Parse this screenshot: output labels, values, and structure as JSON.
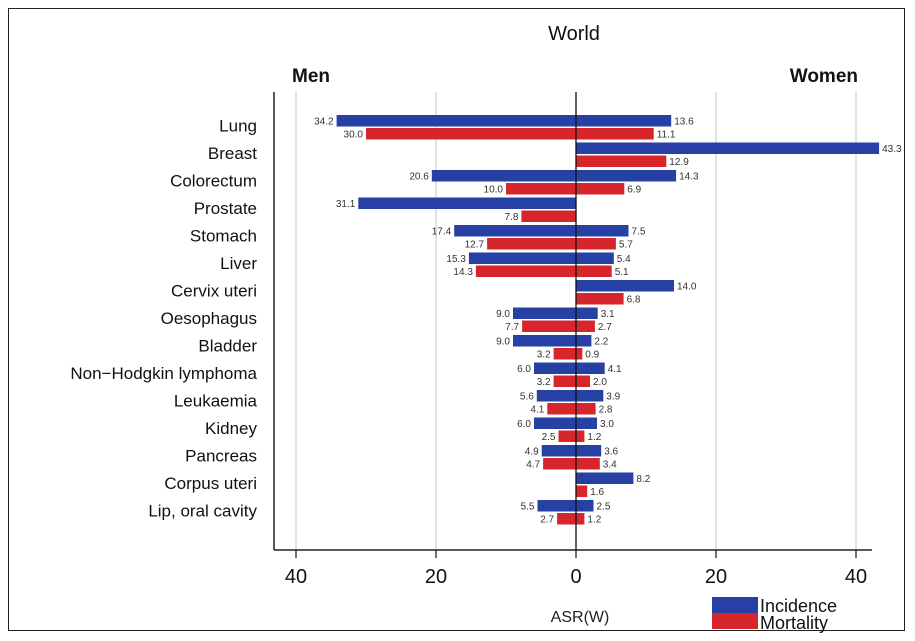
{
  "chart_data": {
    "type": "bar",
    "title": "World",
    "left_heading": "Men",
    "right_heading": "Women",
    "xlabel": "ASR(W)",
    "x_ticks": [
      "40",
      "20",
      "0",
      "20",
      "40"
    ],
    "xlim": [
      -40,
      40
    ],
    "grid": true,
    "legend_position": "bottom-right",
    "colors": {
      "incidence": "#2641a3",
      "mortality": "#d6252b"
    },
    "categories": [
      "Lung",
      "Breast",
      "Colorectum",
      "Prostate",
      "Stomach",
      "Liver",
      "Cervix uteri",
      "Oesophagus",
      "Bladder",
      "Non−Hodgkin lymphoma",
      "Leukaemia",
      "Kidney",
      "Pancreas",
      "Corpus uteri",
      "Lip, oral cavity"
    ],
    "series": [
      {
        "name": "Incidence",
        "side": "Men",
        "values": [
          34.2,
          null,
          20.6,
          31.1,
          17.4,
          15.3,
          null,
          9.0,
          9.0,
          6.0,
          5.6,
          6.0,
          4.9,
          null,
          5.5
        ]
      },
      {
        "name": "Mortality",
        "side": "Men",
        "values": [
          30.0,
          null,
          10.0,
          7.8,
          12.7,
          14.3,
          null,
          7.7,
          3.2,
          3.2,
          4.1,
          2.5,
          4.7,
          null,
          2.7
        ]
      },
      {
        "name": "Incidence",
        "side": "Women",
        "values": [
          13.6,
          43.3,
          14.3,
          null,
          7.5,
          5.4,
          14.0,
          3.1,
          2.2,
          4.1,
          3.9,
          3.0,
          3.6,
          8.2,
          2.5
        ]
      },
      {
        "name": "Mortality",
        "side": "Women",
        "values": [
          11.1,
          12.9,
          6.9,
          null,
          5.7,
          5.1,
          6.8,
          2.7,
          0.9,
          2.0,
          2.8,
          1.2,
          3.4,
          1.6,
          1.2
        ]
      }
    ],
    "legend": [
      "Incidence",
      "Mortality"
    ]
  }
}
